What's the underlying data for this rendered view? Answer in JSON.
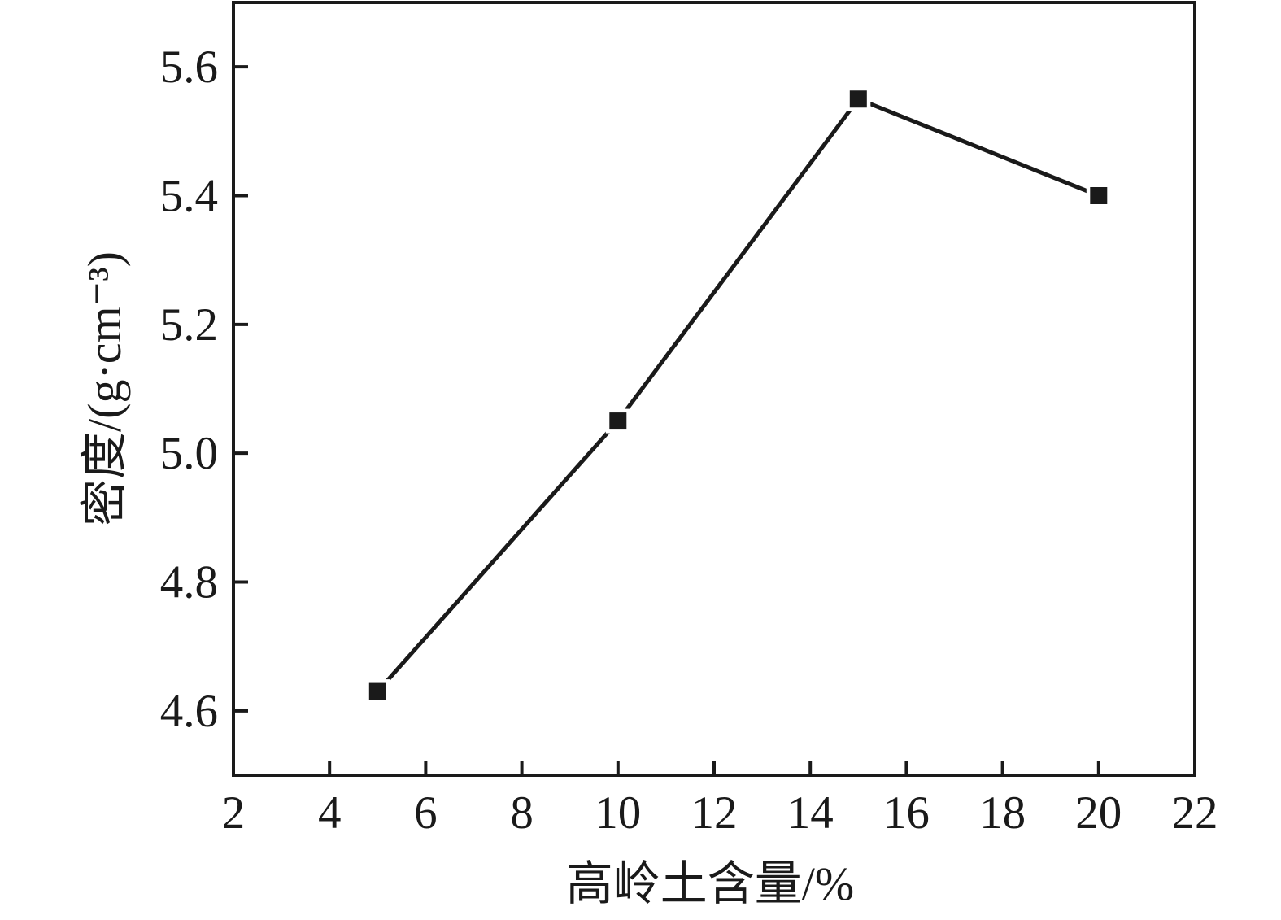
{
  "figure": {
    "background": "#ffffff",
    "ink_color": "#1a1a1a"
  },
  "chart_data": {
    "type": "line",
    "title": "",
    "xlabel": "高岭土含量/%",
    "ylabel": "密度/(g·cm⁻³)",
    "x": [
      5,
      10,
      15,
      20
    ],
    "y": [
      4.63,
      5.05,
      5.55,
      5.4
    ],
    "xlim": [
      2,
      22
    ],
    "ylim": [
      4.5,
      5.7
    ],
    "x_ticks": [
      2,
      4,
      6,
      8,
      10,
      12,
      14,
      16,
      18,
      20,
      22
    ],
    "y_ticks": [
      4.6,
      4.8,
      5.0,
      5.2,
      5.4,
      5.6
    ],
    "y_tick_decimals": 1,
    "grid": false,
    "legend_position": "none",
    "marker": "square",
    "line_color": "#1a1a1a",
    "marker_color": "#1a1a1a"
  }
}
